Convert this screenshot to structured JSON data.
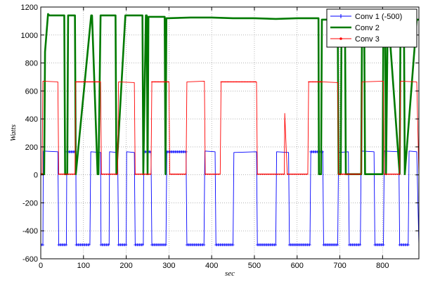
{
  "chart_data": {
    "type": "line",
    "xlabel": "sec",
    "ylabel": "Watts",
    "xlim": [
      0,
      885
    ],
    "ylim": [
      -600,
      1200
    ],
    "xticks": [
      0,
      100,
      200,
      300,
      400,
      500,
      600,
      700,
      800
    ],
    "yticks": [
      -600,
      -400,
      -200,
      0,
      200,
      400,
      600,
      800,
      1000,
      1200
    ],
    "grid": true,
    "legend_position": "top-right",
    "series": [
      {
        "name": "Conv 1 (-500)",
        "color": "#0000ff",
        "marker": "plus",
        "x": [
          0,
          5,
          6,
          40,
          42,
          60,
          61,
          82,
          83,
          115,
          117,
          140,
          141,
          160,
          161,
          180,
          182,
          200,
          201,
          219,
          221,
          240,
          241,
          258,
          260,
          293,
          295,
          340,
          342,
          382,
          384,
          408,
          410,
          450,
          452,
          505,
          507,
          550,
          552,
          580,
          582,
          630,
          632,
          660,
          662,
          695,
          697,
          720,
          722,
          748,
          750,
          780,
          782,
          802,
          804,
          838,
          840,
          860,
          862,
          880,
          885
        ],
        "y": [
          -500,
          -500,
          170,
          165,
          -500,
          -500,
          165,
          165,
          -500,
          -500,
          165,
          160,
          -500,
          -500,
          165,
          160,
          -500,
          -500,
          165,
          160,
          -500,
          -500,
          165,
          165,
          -500,
          -500,
          165,
          165,
          -500,
          -500,
          170,
          165,
          -500,
          -500,
          160,
          165,
          -500,
          -500,
          165,
          160,
          -500,
          -500,
          165,
          165,
          -500,
          -500,
          160,
          165,
          -500,
          -500,
          170,
          165,
          -500,
          -500,
          170,
          165,
          -500,
          -500,
          170,
          165,
          -500
        ]
      },
      {
        "name": "Conv 2",
        "color": "#007a00",
        "marker": "none",
        "x": [
          0,
          8,
          10,
          17,
          20,
          55,
          57,
          62,
          64,
          80,
          82,
          118,
          120,
          133,
          135,
          140,
          142,
          175,
          177,
          198,
          200,
          238,
          240,
          246,
          248,
          250,
          252,
          290,
          292,
          294,
          296,
          350,
          400,
          450,
          500,
          550,
          600,
          630,
          650,
          651,
          656,
          658,
          695,
          697,
          702,
          704,
          712,
          714,
          750,
          752,
          757,
          759,
          800,
          802,
          806,
          808,
          812,
          814,
          840,
          842,
          850,
          852,
          880,
          885
        ],
        "y": [
          5,
          5,
          880,
          1150,
          1140,
          1140,
          5,
          5,
          1140,
          1140,
          5,
          1140,
          1140,
          5,
          5,
          1140,
          1140,
          1140,
          5,
          1140,
          1140,
          1140,
          5,
          1140,
          1140,
          5,
          1130,
          1130,
          5,
          1120,
          1120,
          1125,
          1125,
          1120,
          1120,
          1115,
          1120,
          1120,
          1120,
          5,
          5,
          1110,
          1110,
          5,
          5,
          1110,
          1110,
          5,
          5,
          1110,
          1110,
          5,
          5,
          1110,
          1110,
          5,
          1110,
          1110,
          5,
          1110,
          1110,
          5,
          1110,
          1110
        ]
      },
      {
        "name": "Conv 3",
        "color": "#ff0000",
        "marker": "dot",
        "x": [
          0,
          3,
          5,
          40,
          42,
          80,
          82,
          140,
          142,
          180,
          182,
          219,
          221,
          258,
          260,
          300,
          302,
          340,
          342,
          383,
          385,
          420,
          422,
          505,
          507,
          570,
          571,
          577,
          578,
          625,
          627,
          655,
          660,
          695,
          697,
          750,
          752,
          802,
          804,
          840,
          842,
          880,
          885
        ],
        "y": [
          5,
          5,
          670,
          665,
          5,
          5,
          665,
          665,
          5,
          5,
          665,
          660,
          5,
          5,
          665,
          665,
          5,
          5,
          665,
          670,
          5,
          5,
          665,
          665,
          5,
          5,
          440,
          5,
          5,
          5,
          665,
          665,
          665,
          660,
          5,
          5,
          665,
          670,
          5,
          5,
          670,
          665,
          5
        ]
      }
    ]
  }
}
